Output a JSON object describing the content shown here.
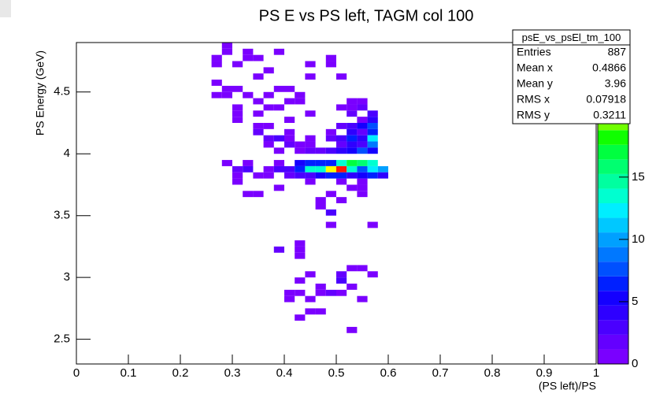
{
  "chart_data": {
    "type": "heatmap",
    "title": "PS E vs PS left, TAGM col 100",
    "x_label": "(PS left)/PS",
    "y_label": "PS Energy (GeV)",
    "xlim": [
      0,
      1
    ],
    "ylim": [
      2.3,
      4.9
    ],
    "xticks": [
      0,
      0.1,
      0.2,
      0.3,
      0.4,
      0.5,
      0.6,
      0.7,
      0.8,
      0.9,
      1
    ],
    "yticks": [
      2.5,
      3,
      3.5,
      4,
      4.5
    ],
    "bin_size": [
      0.02,
      0.05
    ],
    "zlim": [
      0,
      25.8
    ],
    "zticks": [
      0,
      5,
      10,
      15
    ],
    "palette": [
      "#7a00ff",
      "#6400ff",
      "#4a00ff",
      "#2e00ff",
      "#1400ff",
      "#0020ff",
      "#0050ff",
      "#0078ff",
      "#00a0ff",
      "#00c8ff",
      "#00eeff",
      "#00ffd0",
      "#00ffa0",
      "#00ff70",
      "#00ff40",
      "#10ff00",
      "#70ff00",
      "#c0ff00",
      "#ffff00",
      "#ffc000",
      "#ff7000",
      "#ff1a00"
    ],
    "x": [
      0.29,
      0.29,
      0.27,
      0.33,
      0.35,
      0.39,
      0.33,
      0.49,
      0.27,
      0.31,
      0.45,
      0.49,
      0.37,
      0.45,
      0.35,
      0.51,
      0.27,
      0.29,
      0.31,
      0.39,
      0.41,
      0.37,
      0.43,
      0.27,
      0.29,
      0.33,
      0.35,
      0.41,
      0.43,
      0.53,
      0.55,
      0.31,
      0.37,
      0.39,
      0.51,
      0.53,
      0.55,
      0.31,
      0.35,
      0.45,
      0.53,
      0.57,
      0.31,
      0.41,
      0.55,
      0.57,
      0.35,
      0.37,
      0.51,
      0.53,
      0.55,
      0.57,
      0.35,
      0.41,
      0.49,
      0.53,
      0.55,
      0.57,
      0.37,
      0.39,
      0.41,
      0.45,
      0.49,
      0.51,
      0.53,
      0.55,
      0.57,
      0.37,
      0.41,
      0.43,
      0.45,
      0.51,
      0.53,
      0.55,
      0.57,
      0.39,
      0.43,
      0.45,
      0.47,
      0.49,
      0.51,
      0.53,
      0.55,
      0.57,
      0.29,
      0.33,
      0.39,
      0.43,
      0.45,
      0.47,
      0.49,
      0.51,
      0.53,
      0.55,
      0.57,
      0.31,
      0.33,
      0.37,
      0.39,
      0.41,
      0.43,
      0.45,
      0.47,
      0.49,
      0.51,
      0.53,
      0.55,
      0.57,
      0.59,
      0.31,
      0.35,
      0.37,
      0.41,
      0.43,
      0.45,
      0.47,
      0.49,
      0.51,
      0.53,
      0.55,
      0.57,
      0.59,
      0.31,
      0.45,
      0.51,
      0.55,
      0.39,
      0.53,
      0.55,
      0.33,
      0.35,
      0.49,
      0.55,
      0.47,
      0.51,
      0.47,
      0.49,
      0.49,
      0.57,
      0.43,
      0.43,
      0.39,
      0.43,
      0.53,
      0.55,
      0.51,
      0.57,
      0.45,
      0.51,
      0.43,
      0.47,
      0.53,
      0.41,
      0.43,
      0.49,
      0.51,
      0.47,
      0.41,
      0.45,
      0.55,
      0.45,
      0.47,
      0.43,
      0.53
    ],
    "y": [
      4.875,
      4.825,
      4.775,
      4.825,
      4.775,
      4.825,
      4.775,
      4.775,
      4.725,
      4.725,
      4.725,
      4.725,
      4.675,
      4.625,
      4.625,
      4.625,
      4.575,
      4.525,
      4.525,
      4.525,
      4.525,
      4.475,
      4.475,
      4.475,
      4.475,
      4.475,
      4.425,
      4.425,
      4.425,
      4.425,
      4.425,
      4.375,
      4.375,
      4.375,
      4.375,
      4.375,
      4.375,
      4.325,
      4.325,
      4.325,
      4.325,
      4.325,
      4.275,
      4.275,
      4.275,
      4.275,
      4.225,
      4.225,
      4.225,
      4.225,
      4.225,
      4.225,
      4.175,
      4.175,
      4.175,
      4.175,
      4.175,
      4.175,
      4.125,
      4.125,
      4.125,
      4.125,
      4.125,
      4.125,
      4.125,
      4.125,
      4.125,
      4.075,
      4.075,
      4.075,
      4.075,
      4.075,
      4.075,
      4.075,
      4.075,
      4.025,
      4.025,
      4.025,
      4.025,
      4.025,
      4.025,
      4.025,
      4.025,
      4.025,
      3.925,
      3.925,
      3.925,
      3.925,
      3.925,
      3.925,
      3.925,
      3.925,
      3.925,
      3.925,
      3.925,
      3.875,
      3.875,
      3.875,
      3.875,
      3.875,
      3.875,
      3.875,
      3.875,
      3.875,
      3.875,
      3.875,
      3.875,
      3.875,
      3.875,
      3.825,
      3.825,
      3.825,
      3.825,
      3.825,
      3.825,
      3.825,
      3.825,
      3.825,
      3.825,
      3.825,
      3.825,
      3.825,
      3.775,
      3.775,
      3.775,
      3.775,
      3.725,
      3.725,
      3.725,
      3.675,
      3.675,
      3.675,
      3.675,
      3.625,
      3.625,
      3.575,
      3.525,
      3.425,
      3.425,
      3.275,
      3.225,
      3.225,
      3.175,
      3.075,
      3.075,
      3.025,
      3.025,
      3.025,
      2.975,
      2.975,
      2.925,
      2.925,
      2.875,
      2.875,
      2.875,
      2.875,
      2.875,
      2.825,
      2.825,
      2.825,
      2.725,
      2.725,
      2.675,
      2.575
    ],
    "values": [
      1,
      1,
      1,
      1,
      1,
      1,
      1,
      1,
      1,
      1,
      1,
      1,
      1,
      1,
      1,
      1,
      1,
      1,
      1,
      1,
      1,
      1,
      1,
      1,
      1,
      1,
      1,
      1,
      1,
      1,
      1,
      1,
      1,
      1,
      1,
      1,
      2,
      1,
      1,
      1,
      2,
      3,
      1,
      1,
      1,
      4,
      1,
      1,
      2,
      3,
      5,
      8,
      2,
      1,
      1,
      4,
      2,
      6,
      2,
      3,
      1,
      1,
      2,
      3,
      6,
      4,
      12,
      1,
      2,
      1,
      1,
      2,
      4,
      3,
      9,
      1,
      1,
      2,
      2,
      3,
      4,
      5,
      8,
      5,
      1,
      1,
      1,
      5,
      6,
      7,
      6,
      14,
      17,
      16,
      14,
      2,
      3,
      1,
      3,
      3,
      7,
      13,
      14,
      22,
      25,
      13,
      8,
      12,
      10,
      1,
      1,
      1,
      2,
      3,
      3,
      5,
      7,
      6,
      4,
      5,
      6,
      4,
      1,
      1,
      1,
      1,
      1,
      1,
      1,
      1,
      1,
      1,
      1,
      1,
      1,
      1,
      3,
      1,
      1,
      1,
      1,
      2,
      1,
      1,
      1,
      2,
      1,
      1,
      3,
      1,
      1,
      1,
      1,
      1,
      2,
      1,
      1,
      1,
      1,
      1,
      1,
      1,
      1,
      1
    ]
  },
  "stats": {
    "title": "psE_vs_psEl_tm_100",
    "rows": [
      [
        "Entries",
        "887"
      ],
      [
        "Mean x",
        "0.4866"
      ],
      [
        "Mean y",
        "3.96"
      ],
      [
        "RMS x",
        "0.07918"
      ],
      [
        "RMS y",
        "0.3211"
      ]
    ]
  }
}
